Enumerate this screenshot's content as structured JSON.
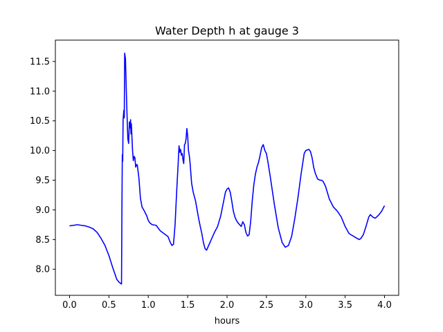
{
  "chart_data": {
    "type": "line",
    "title": "Water Depth h at gauge 3",
    "xlabel": "hours",
    "ylabel": "",
    "xlim": [
      -0.18,
      4.18
    ],
    "ylim": [
      7.56,
      11.86
    ],
    "xticks": [
      0.0,
      0.5,
      1.0,
      1.5,
      2.0,
      2.5,
      3.0,
      3.5,
      4.0
    ],
    "xtick_labels": [
      "0.0",
      "0.5",
      "1.0",
      "1.5",
      "2.0",
      "2.5",
      "3.0",
      "3.5",
      "4.0"
    ],
    "yticks": [
      8.0,
      8.5,
      9.0,
      9.5,
      10.0,
      10.5,
      11.0,
      11.5
    ],
    "ytick_labels": [
      "8.0",
      "8.5",
      "9.0",
      "9.5",
      "10.0",
      "10.5",
      "11.0",
      "11.5"
    ],
    "grid": false,
    "series": [
      {
        "color": "#0000ff",
        "x": [
          0.0,
          0.05,
          0.1,
          0.15,
          0.2,
          0.25,
          0.3,
          0.35,
          0.4,
          0.45,
          0.5,
          0.55,
          0.6,
          0.63,
          0.66,
          0.665,
          0.67,
          0.675,
          0.68,
          0.69,
          0.695,
          0.7,
          0.71,
          0.72,
          0.73,
          0.74,
          0.75,
          0.76,
          0.77,
          0.775,
          0.78,
          0.785,
          0.79,
          0.8,
          0.81,
          0.82,
          0.83,
          0.84,
          0.85,
          0.86,
          0.87,
          0.88,
          0.9,
          0.92,
          0.95,
          0.98,
          1.0,
          1.02,
          1.05,
          1.1,
          1.15,
          1.2,
          1.25,
          1.28,
          1.3,
          1.32,
          1.34,
          1.36,
          1.38,
          1.39,
          1.4,
          1.41,
          1.42,
          1.43,
          1.44,
          1.45,
          1.46,
          1.47,
          1.48,
          1.49,
          1.5,
          1.51,
          1.52,
          1.53,
          1.55,
          1.57,
          1.6,
          1.62,
          1.64,
          1.66,
          1.68,
          1.7,
          1.72,
          1.74,
          1.76,
          1.8,
          1.84,
          1.88,
          1.92,
          1.95,
          1.98,
          2.0,
          2.02,
          2.04,
          2.06,
          2.08,
          2.1,
          2.12,
          2.14,
          2.16,
          2.18,
          2.2,
          2.22,
          2.24,
          2.26,
          2.28,
          2.3,
          2.32,
          2.34,
          2.36,
          2.38,
          2.4,
          2.42,
          2.44,
          2.46,
          2.48,
          2.5,
          2.52,
          2.55,
          2.6,
          2.65,
          2.7,
          2.74,
          2.78,
          2.82,
          2.86,
          2.9,
          2.94,
          2.98,
          3.0,
          3.02,
          3.04,
          3.06,
          3.08,
          3.1,
          3.12,
          3.15,
          3.18,
          3.2,
          3.22,
          3.25,
          3.3,
          3.35,
          3.4,
          3.45,
          3.5,
          3.55,
          3.6,
          3.65,
          3.68,
          3.7,
          3.73,
          3.76,
          3.8,
          3.82,
          3.85,
          3.88,
          3.9,
          3.93,
          3.96,
          4.0
        ],
        "y": [
          8.73,
          8.74,
          8.75,
          8.74,
          8.73,
          8.71,
          8.68,
          8.62,
          8.52,
          8.4,
          8.23,
          8.02,
          7.83,
          7.78,
          7.75,
          9.0,
          9.93,
          9.82,
          10.52,
          10.68,
          10.55,
          11.64,
          11.55,
          11.05,
          10.6,
          10.2,
          10.12,
          10.48,
          10.38,
          10.52,
          10.28,
          10.45,
          10.3,
          10.0,
          9.83,
          9.9,
          9.88,
          9.72,
          9.76,
          9.76,
          9.65,
          9.55,
          9.2,
          9.05,
          8.98,
          8.9,
          8.82,
          8.78,
          8.75,
          8.74,
          8.65,
          8.6,
          8.55,
          8.45,
          8.4,
          8.42,
          8.75,
          9.3,
          9.8,
          10.08,
          9.97,
          10.02,
          9.92,
          9.95,
          9.85,
          9.78,
          10.1,
          10.12,
          10.2,
          10.37,
          10.25,
          10.0,
          9.92,
          9.8,
          9.45,
          9.3,
          9.15,
          9.0,
          8.85,
          8.72,
          8.6,
          8.45,
          8.35,
          8.32,
          8.38,
          8.5,
          8.62,
          8.72,
          8.9,
          9.1,
          9.3,
          9.35,
          9.37,
          9.3,
          9.15,
          8.98,
          8.88,
          8.82,
          8.78,
          8.75,
          8.72,
          8.8,
          8.75,
          8.62,
          8.56,
          8.58,
          8.8,
          9.15,
          9.42,
          9.6,
          9.72,
          9.8,
          9.92,
          10.05,
          10.1,
          10.0,
          9.95,
          9.8,
          9.55,
          9.1,
          8.7,
          8.45,
          8.37,
          8.4,
          8.55,
          8.85,
          9.2,
          9.6,
          9.95,
          10.0,
          10.01,
          10.02,
          9.98,
          9.88,
          9.72,
          9.62,
          9.52,
          9.5,
          9.5,
          9.48,
          9.4,
          9.18,
          9.05,
          8.98,
          8.88,
          8.72,
          8.6,
          8.56,
          8.52,
          8.5,
          8.52,
          8.58,
          8.7,
          8.88,
          8.92,
          8.88,
          8.86,
          8.88,
          8.92,
          8.97,
          9.07
        ]
      }
    ]
  }
}
